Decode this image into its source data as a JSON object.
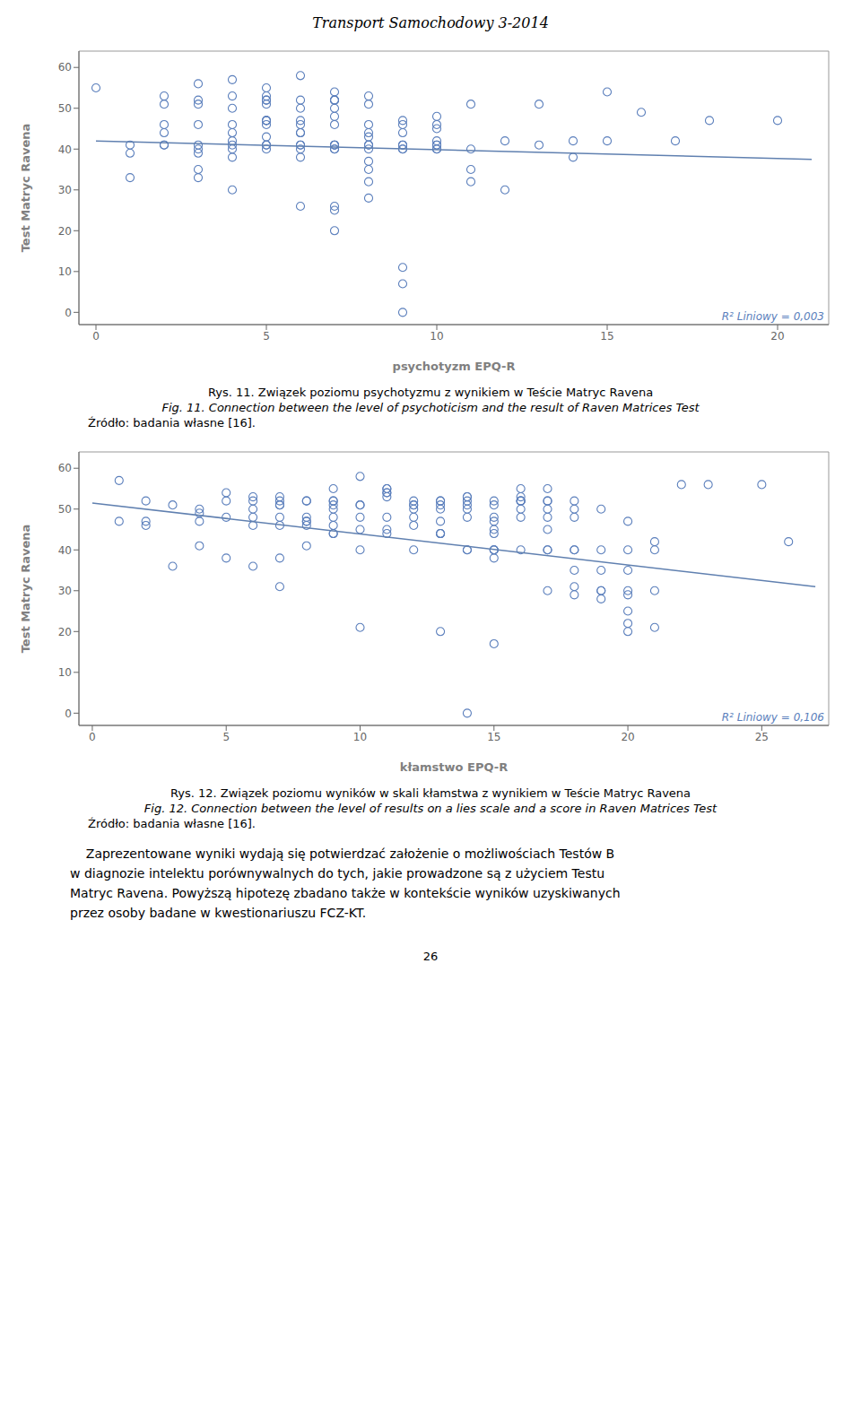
{
  "title": "Transport Samochodowy 3-2014",
  "chart_data": [
    {
      "type": "scatter",
      "x_label": "psychotyzm EPQ-R",
      "y_label": "Test Matryc Ravena",
      "xlim": [
        -0.5,
        21.5
      ],
      "ylim": [
        -3,
        64
      ],
      "xticks": [
        0,
        5,
        10,
        15,
        20
      ],
      "yticks": [
        0,
        10,
        20,
        30,
        40,
        50,
        60
      ],
      "grid": false,
      "annotations": [
        "R² Liniowy = 0,003"
      ],
      "caption": [
        "Rys. 11. Związek poziomu psychotyzmu z wynikiem w Teście Matryc Ravena",
        "Fig. 11. Connection between the level of psychoticism and the result of Raven Matrices Test",
        "Źródło: badania własne [16]."
      ],
      "series": [
        {
          "type": "scatter",
          "color": "#5b7fbc",
          "marker": "circle",
          "x": [
            0,
            1,
            1,
            1,
            2,
            2,
            2,
            2,
            2,
            2,
            3,
            3,
            3,
            3,
            3,
            3,
            3,
            3,
            3,
            4,
            4,
            4,
            4,
            4,
            4,
            4,
            4,
            4,
            4,
            5,
            5,
            5,
            5,
            5,
            5,
            5,
            5,
            5,
            5,
            5,
            5,
            5,
            6,
            6,
            6,
            6,
            6,
            6,
            6,
            6,
            6,
            6,
            6,
            6,
            7,
            7,
            7,
            7,
            7,
            7,
            7,
            7,
            7,
            7,
            7,
            7,
            7,
            7,
            7,
            8,
            8,
            8,
            8,
            8,
            8,
            8,
            8,
            8,
            8,
            8,
            8,
            9,
            9,
            9,
            9,
            9,
            9,
            9,
            9,
            9,
            9,
            10,
            10,
            10,
            10,
            10,
            10,
            10,
            10,
            11,
            11,
            11,
            11,
            12,
            12,
            13,
            13,
            14,
            14,
            15,
            15,
            16,
            17,
            18,
            20
          ],
          "values": [
            55,
            41,
            39,
            33,
            53,
            51,
            46,
            44,
            41,
            41,
            56,
            52,
            51,
            46,
            41,
            40,
            39,
            35,
            33,
            57,
            53,
            50,
            46,
            44,
            42,
            41,
            40,
            38,
            30,
            55,
            53,
            52,
            52,
            51,
            47,
            47,
            47,
            46,
            43,
            41,
            41,
            40,
            58,
            52,
            50,
            47,
            46,
            44,
            44,
            41,
            41,
            40,
            38,
            26,
            54,
            52,
            52,
            52,
            50,
            48,
            46,
            41,
            41,
            41,
            40,
            40,
            26,
            25,
            20,
            53,
            51,
            46,
            44,
            43,
            41,
            41,
            40,
            37,
            35,
            32,
            28,
            11,
            7,
            47,
            46,
            44,
            41,
            41,
            40,
            40,
            0,
            48,
            46,
            45,
            42,
            41,
            41,
            40,
            40,
            51,
            40,
            35,
            32,
            42,
            30,
            51,
            41,
            42,
            38,
            54,
            42,
            49,
            42,
            47,
            47
          ]
        },
        {
          "type": "line",
          "color": "#6080b0",
          "x": [
            0,
            21
          ],
          "values": [
            42.0,
            37.5
          ]
        }
      ]
    },
    {
      "type": "scatter",
      "x_label": "kłamstwo EPQ-R",
      "y_label": "Test Matryc Ravena",
      "xlim": [
        -0.5,
        27.5
      ],
      "ylim": [
        -3,
        64
      ],
      "xticks": [
        0,
        5,
        10,
        15,
        20,
        25
      ],
      "yticks": [
        0,
        10,
        20,
        30,
        40,
        50,
        60
      ],
      "grid": false,
      "annotations": [
        "R² Liniowy = 0,106"
      ],
      "caption": [
        "Rys. 12. Związek poziomu wyników w skali kłamstwa z wynikiem w Teście Matryc Ravena",
        "Fig. 12. Connection between the level of results on a lies scale and a score in Raven Matrices Test",
        "Źródło: badania własne [16]."
      ],
      "series": [
        {
          "type": "scatter",
          "color": "#5b7fbc",
          "marker": "circle",
          "x": [
            1,
            1,
            2,
            2,
            2,
            3,
            3,
            4,
            4,
            4,
            4,
            5,
            5,
            5,
            5,
            6,
            6,
            6,
            6,
            6,
            6,
            7,
            7,
            7,
            7,
            7,
            7,
            7,
            7,
            8,
            8,
            8,
            8,
            8,
            8,
            8,
            9,
            9,
            9,
            9,
            9,
            9,
            9,
            9,
            9,
            10,
            10,
            10,
            10,
            10,
            10,
            10,
            11,
            11,
            11,
            11,
            11,
            11,
            11,
            11,
            12,
            12,
            12,
            12,
            12,
            12,
            12,
            13,
            13,
            13,
            13,
            13,
            13,
            13,
            13,
            13,
            14,
            14,
            14,
            14,
            14,
            14,
            14,
            14,
            14,
            15,
            15,
            15,
            15,
            15,
            15,
            15,
            15,
            15,
            15,
            15,
            16,
            16,
            16,
            16,
            16,
            16,
            16,
            16,
            17,
            17,
            17,
            17,
            17,
            17,
            17,
            17,
            17,
            18,
            18,
            18,
            18,
            18,
            18,
            18,
            18,
            19,
            19,
            19,
            19,
            19,
            19,
            20,
            20,
            20,
            20,
            20,
            20,
            20,
            20,
            21,
            21,
            21,
            21,
            22,
            23,
            25,
            26
          ],
          "values": [
            57,
            47,
            52,
            47,
            46,
            51,
            36,
            50,
            49,
            47,
            41,
            54,
            52,
            48,
            38,
            53,
            52,
            50,
            48,
            46,
            36,
            53,
            52,
            51,
            51,
            48,
            46,
            38,
            31,
            52,
            52,
            48,
            47,
            47,
            46,
            41,
            55,
            52,
            52,
            51,
            50,
            48,
            46,
            44,
            44,
            58,
            51,
            51,
            48,
            45,
            40,
            21,
            55,
            55,
            54,
            54,
            53,
            48,
            45,
            44,
            52,
            51,
            51,
            50,
            48,
            46,
            40,
            52,
            52,
            51,
            50,
            47,
            44,
            44,
            44,
            20,
            53,
            53,
            52,
            51,
            50,
            48,
            40,
            40,
            0,
            52,
            51,
            48,
            47,
            45,
            44,
            40,
            40,
            40,
            38,
            17,
            55,
            53,
            52,
            52,
            52,
            50,
            48,
            40,
            55,
            52,
            52,
            50,
            48,
            45,
            40,
            40,
            30,
            52,
            50,
            48,
            40,
            40,
            35,
            31,
            29,
            50,
            40,
            35,
            30,
            30,
            28,
            47,
            40,
            35,
            30,
            29,
            25,
            22,
            20,
            42,
            40,
            30,
            21,
            56,
            56,
            56,
            42
          ]
        },
        {
          "type": "line",
          "color": "#6080b0",
          "x": [
            0,
            27
          ],
          "values": [
            51.5,
            31.0
          ]
        }
      ]
    }
  ],
  "text": [
    "    Zaprezentowane wyniki wydają się potwierdzać założenie o możliwościach Testów B",
    "w diagnozie intelektu porównywalnych do tych, jakie prowadzone są z użyciem Testu",
    "Matryc Ravena. Powyższą hipotezę zbadano także w kontekście wyników uzyskiwanych",
    "przez osoby badane w kwestionariuszu FCZ-KT."
  ],
  "page_number": "26"
}
